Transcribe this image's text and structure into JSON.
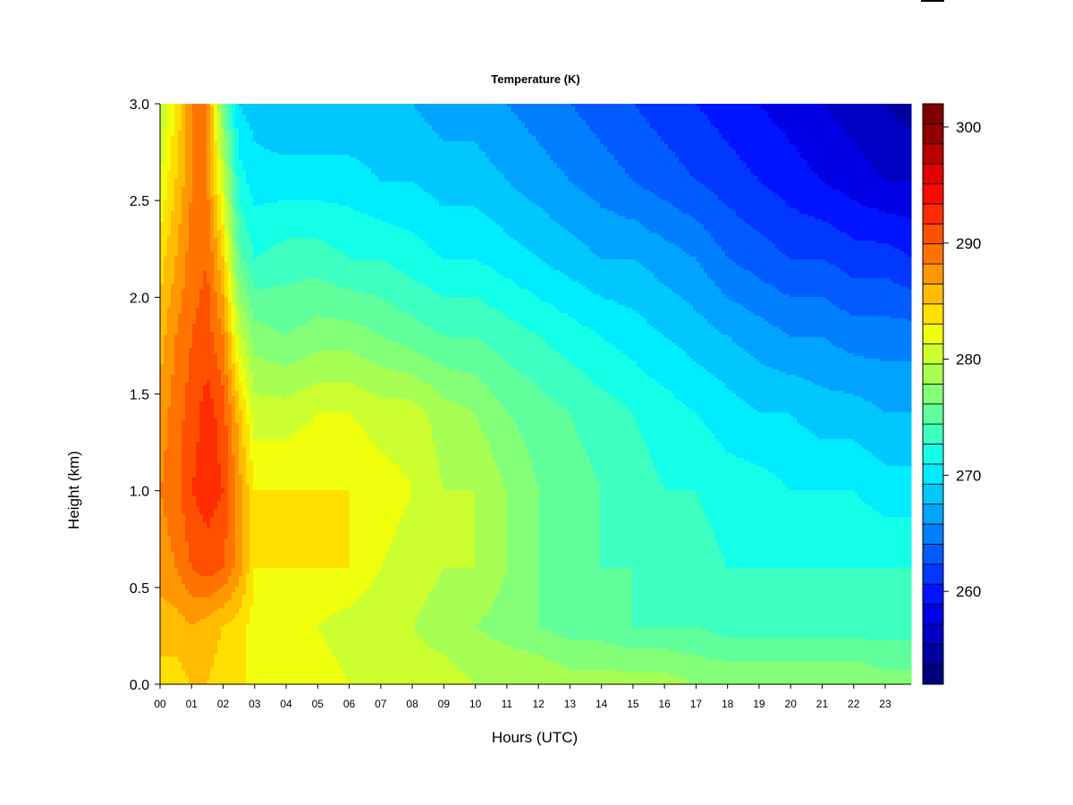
{
  "chart_data": {
    "type": "heatmap",
    "title": "Temperature (K)",
    "xlabel": "Hours (UTC)",
    "ylabel": "Height (km)",
    "xlim": [
      0,
      23.85
    ],
    "ylim": [
      0,
      3.0
    ],
    "x_ticks": [
      "00",
      "01",
      "02",
      "03",
      "04",
      "05",
      "06",
      "07",
      "08",
      "09",
      "10",
      "11",
      "12",
      "13",
      "14",
      "15",
      "16",
      "17",
      "18",
      "19",
      "20",
      "21",
      "22",
      "23"
    ],
    "y_ticks": [
      "0.0",
      "0.5",
      "1.0",
      "1.5",
      "2.0",
      "2.5",
      "3.0"
    ],
    "y_tick_values": [
      0,
      0.5,
      1.0,
      1.5,
      2.0,
      2.5,
      3.0
    ],
    "colorbar": {
      "min": 252,
      "max": 302,
      "step": 2,
      "ticks": [
        260,
        270,
        280,
        290,
        300
      ],
      "tick_labels": [
        "260",
        "270",
        "280",
        "290",
        "300"
      ],
      "colors": [
        "#00007F",
        "#0000A0",
        "#0000C4",
        "#0000E5",
        "#0014FF",
        "#0038FF",
        "#005CFF",
        "#0080FF",
        "#00A4FF",
        "#00C8FF",
        "#00ECFF",
        "#14FFE8",
        "#3CFFC0",
        "#60FF9C",
        "#84FF78",
        "#A8FF54",
        "#CCFF30",
        "#F0FF0C",
        "#FFE000",
        "#FFBC00",
        "#FF9800",
        "#FF7400",
        "#FF5000",
        "#FF2C00",
        "#FF0800",
        "#E00000",
        "#B80000",
        "#900000",
        "#7F0000"
      ]
    },
    "profiles": [
      {
        "hour": 0.0,
        "temps": [
          289,
          291,
          293,
          294,
          293,
          291,
          289,
          286,
          284
        ]
      },
      {
        "hour": 0.5,
        "temps": [
          289,
          291,
          294,
          295,
          295,
          294,
          292,
          290,
          288
        ]
      },
      {
        "hour": 1.0,
        "temps": [
          290,
          292,
          296,
          298,
          297,
          296,
          295,
          294,
          294
        ]
      },
      {
        "hour": 1.5,
        "temps": [
          290,
          291,
          297,
          299,
          299,
          297,
          296,
          294,
          294
        ]
      },
      {
        "hour": 2.0,
        "temps": [
          289,
          290,
          296,
          298,
          297,
          294,
          290,
          285,
          280
        ]
      },
      {
        "hour": 2.5,
        "temps": [
          288,
          289,
          293,
          293,
          291,
          285,
          279,
          275,
          272
        ]
      },
      {
        "hour": 3.0,
        "temps": [
          288,
          287,
          288,
          288,
          285,
          281,
          276,
          273,
          271
        ]
      },
      {
        "hour": 4.0,
        "temps": [
          287,
          287,
          288,
          288,
          285,
          280,
          277,
          273,
          270
        ]
      },
      {
        "hour": 5.0,
        "temps": [
          287,
          286,
          288,
          288,
          286,
          281,
          277,
          273,
          270
        ]
      },
      {
        "hour": 6.0,
        "temps": [
          286,
          285,
          288,
          288,
          286,
          281,
          276,
          273,
          270
        ]
      },
      {
        "hour": 7.0,
        "temps": [
          286,
          284,
          286,
          287,
          285,
          280,
          276,
          272,
          270
        ]
      },
      {
        "hour": 8.0,
        "temps": [
          285,
          284,
          285,
          286,
          285,
          279,
          275,
          272,
          270
        ]
      },
      {
        "hour": 9.0,
        "temps": [
          285,
          283,
          284,
          284,
          283,
          278,
          274,
          271,
          269
        ]
      },
      {
        "hour": 10.0,
        "temps": [
          284,
          282,
          284,
          284,
          282,
          278,
          274,
          271,
          269
        ]
      },
      {
        "hour": 11.0,
        "temps": [
          284,
          281,
          282,
          282,
          280,
          277,
          273,
          270,
          268
        ]
      },
      {
        "hour": 12.0,
        "temps": [
          284,
          280,
          280,
          280,
          279,
          276,
          272,
          269,
          267
        ]
      },
      {
        "hour": 13.0,
        "temps": [
          283,
          279,
          279,
          279,
          278,
          275,
          271,
          268,
          266
        ]
      },
      {
        "hour": 14.0,
        "temps": [
          283,
          279,
          278,
          278,
          277,
          274,
          270,
          267,
          265
        ]
      },
      {
        "hour": 15.0,
        "temps": [
          283,
          278,
          278,
          277,
          276,
          273,
          270,
          266,
          264
        ]
      },
      {
        "hour": 16.0,
        "temps": [
          283,
          278,
          277,
          276,
          275,
          272,
          269,
          265,
          263
        ]
      },
      {
        "hour": 17.0,
        "temps": [
          282,
          278,
          277,
          276,
          274,
          271,
          268,
          264,
          262
        ]
      },
      {
        "hour": 18.0,
        "temps": [
          282,
          277,
          276,
          275,
          273,
          270,
          266,
          263,
          261
        ]
      },
      {
        "hour": 19.0,
        "temps": [
          282,
          277,
          276,
          275,
          272,
          269,
          265,
          262,
          260
        ]
      },
      {
        "hour": 20.0,
        "temps": [
          282,
          277,
          276,
          274,
          272,
          268,
          264,
          261,
          259
        ]
      },
      {
        "hour": 21.0,
        "temps": [
          282,
          277,
          276,
          274,
          271,
          268,
          264,
          260,
          258
        ]
      },
      {
        "hour": 22.0,
        "temps": [
          282,
          277,
          276,
          274,
          271,
          267,
          263,
          259,
          257
        ]
      },
      {
        "hour": 23.0,
        "temps": [
          281,
          277,
          276,
          273,
          270,
          267,
          263,
          258,
          256
        ]
      },
      {
        "hour": 23.85,
        "temps": [
          281,
          277,
          276,
          273,
          270,
          267,
          262,
          258,
          255
        ]
      }
    ],
    "profile_heights": [
      0.0,
      0.3,
      0.6,
      1.0,
      1.4,
      1.8,
      2.2,
      2.6,
      3.0
    ],
    "legend_position": "right",
    "grid": false
  }
}
